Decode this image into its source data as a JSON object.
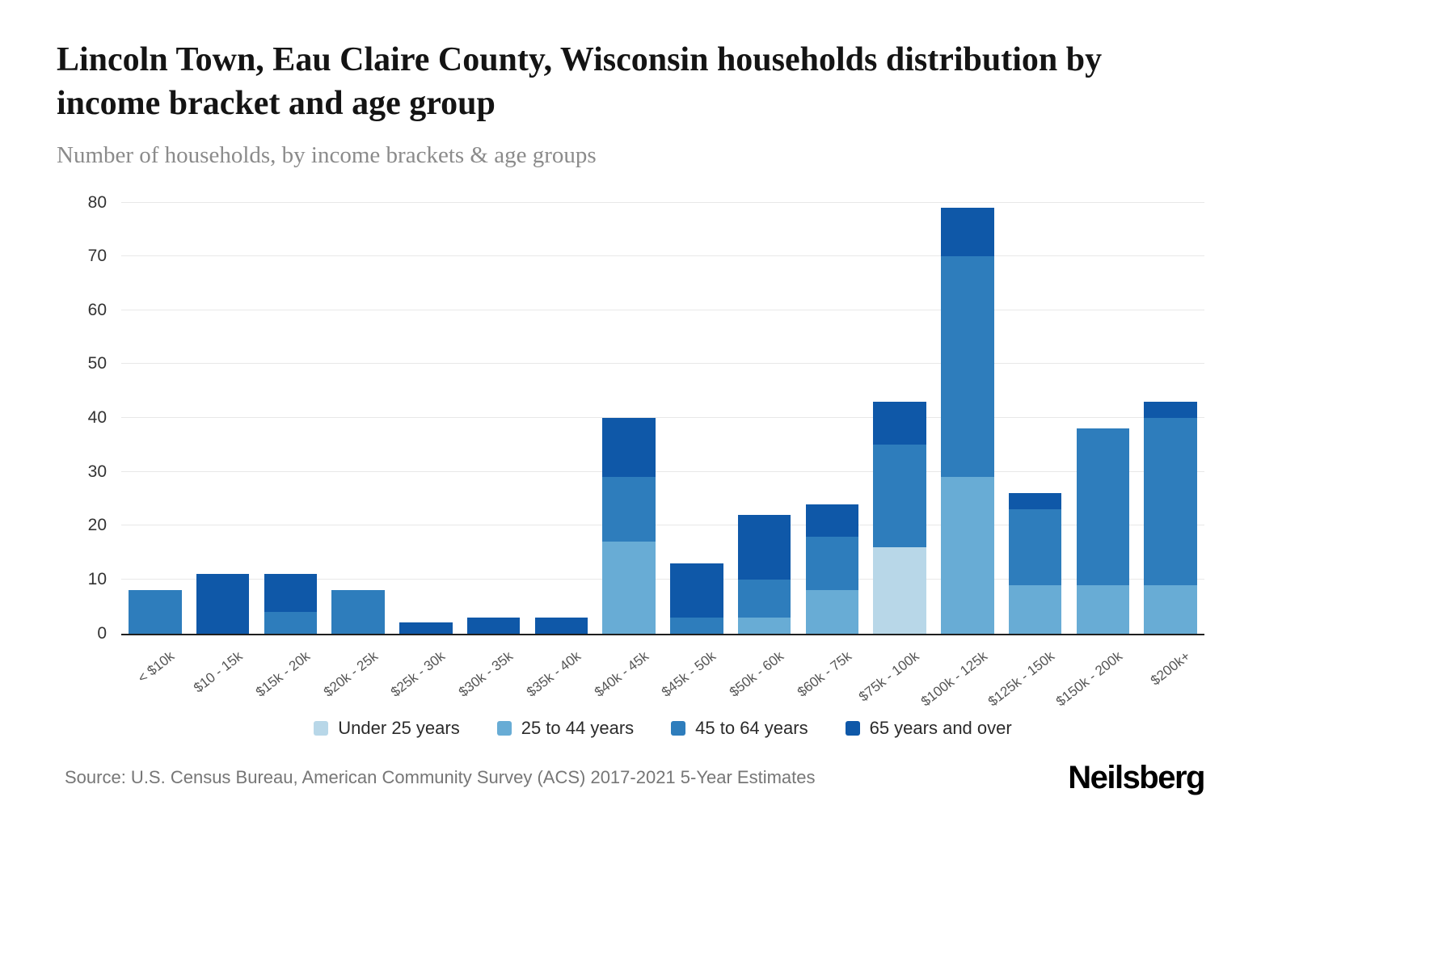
{
  "header": {
    "title": "Lincoln Town, Eau Claire County, Wisconsin households distribution by income bracket and age group",
    "subtitle": "Number of households, by income brackets & age groups"
  },
  "footer": {
    "source": "Source: U.S. Census Bureau, American Community Survey (ACS) 2017-2021 5-Year Estimates",
    "brand": "Neilsberg"
  },
  "chart_data": {
    "type": "bar",
    "stacked": true,
    "title": "Lincoln Town, Eau Claire County, Wisconsin households distribution by income bracket and age group",
    "xlabel": "",
    "ylabel": "Number of households",
    "ylim": [
      0,
      80
    ],
    "yticks": [
      0,
      10,
      20,
      30,
      40,
      50,
      60,
      70,
      80
    ],
    "grid": true,
    "legend_position": "bottom",
    "categories": [
      "< $10k",
      "$10 - 15k",
      "$15k - 20k",
      "$20k - 25k",
      "$25k - 30k",
      "$30k - 35k",
      "$35k - 40k",
      "$40k - 45k",
      "$45k - 50k",
      "$50k - 60k",
      "$60k - 75k",
      "$75k - 100k",
      "$100k - 125k",
      "$125k - 150k",
      "$150k - 200k",
      "$200k+"
    ],
    "series": [
      {
        "name": "Under 25 years",
        "color": "#b8d7e8",
        "values": [
          0,
          0,
          0,
          0,
          0,
          0,
          0,
          0,
          0,
          0,
          0,
          16,
          0,
          0,
          0,
          0
        ]
      },
      {
        "name": "25 to 44 years",
        "color": "#68acd5",
        "values": [
          0,
          0,
          0,
          0,
          0,
          0,
          0,
          17,
          0,
          3,
          8,
          0,
          29,
          9,
          9,
          9
        ]
      },
      {
        "name": "45 to 64 years",
        "color": "#2e7dbc",
        "values": [
          8,
          0,
          4,
          8,
          0,
          0,
          0,
          12,
          3,
          7,
          10,
          19,
          41,
          14,
          29,
          31
        ]
      },
      {
        "name": "65 years and over",
        "color": "#0f58a8",
        "values": [
          0,
          11,
          7,
          0,
          2,
          3,
          3,
          11,
          10,
          12,
          6,
          8,
          9,
          3,
          0,
          3
        ]
      }
    ]
  }
}
